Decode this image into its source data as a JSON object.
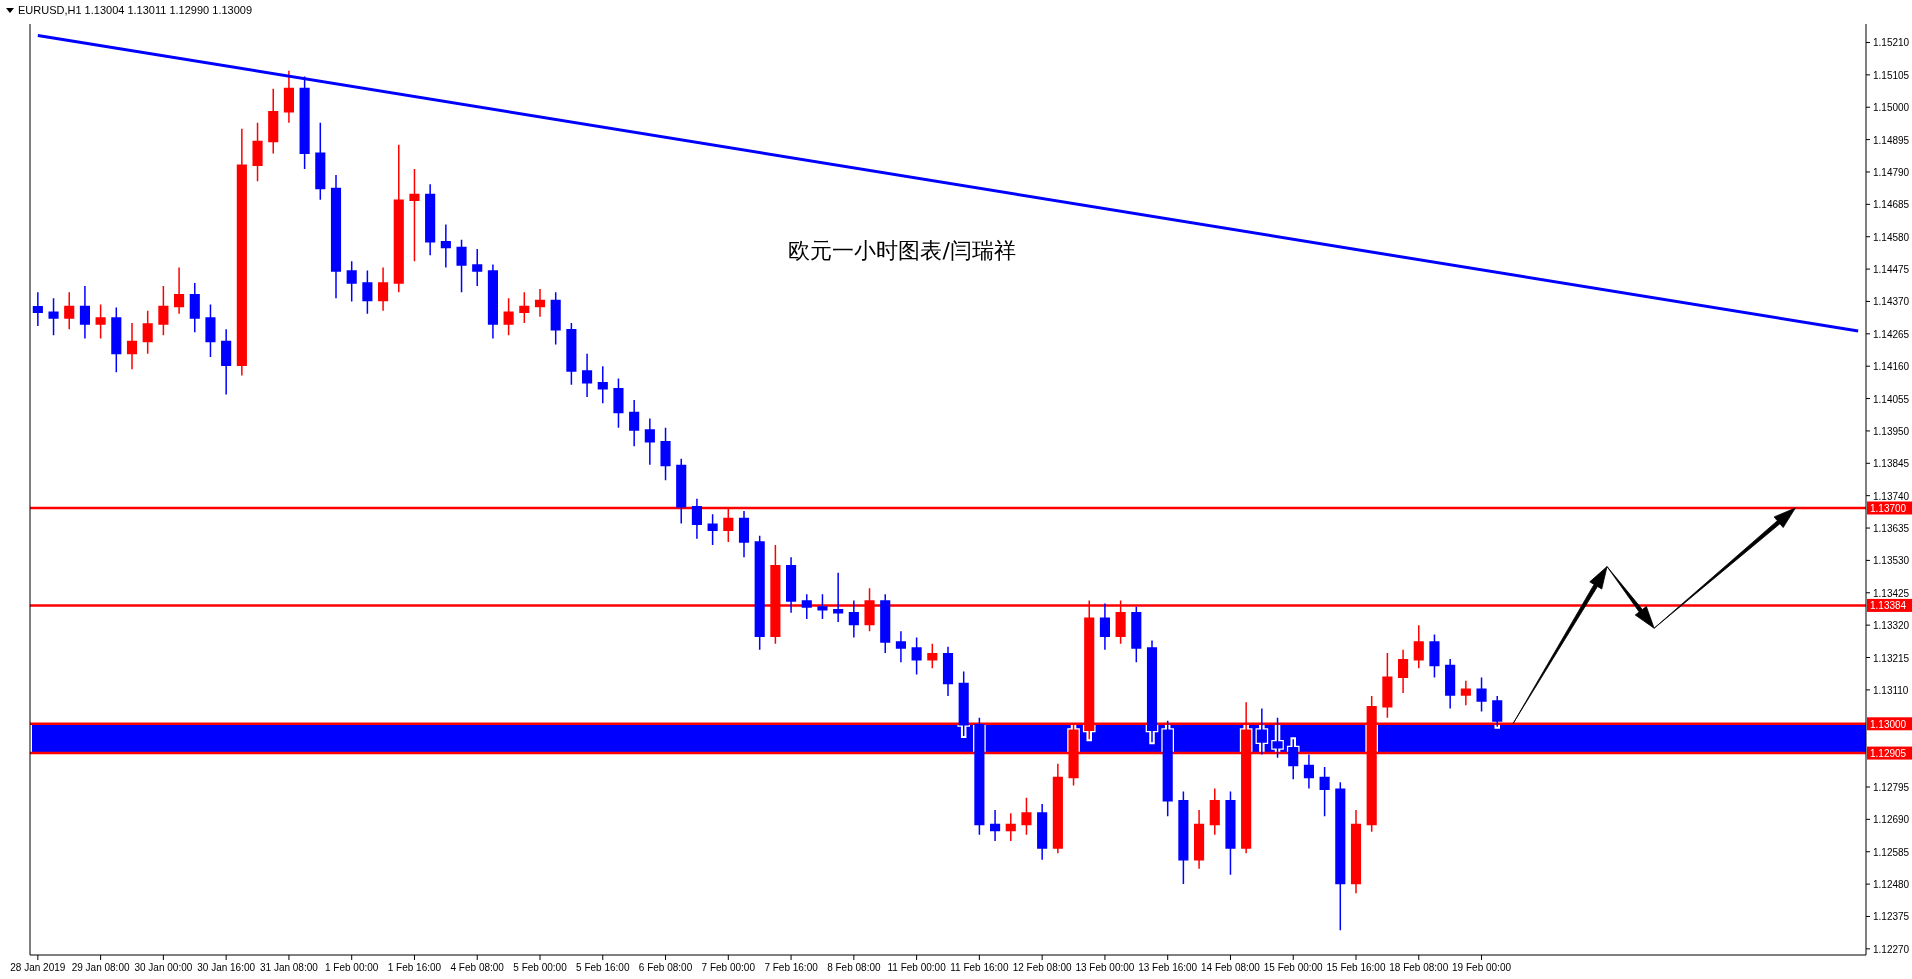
{
  "chart_data": {
    "type": "candlestick",
    "title": "欧元一小时图表/闫瑞祥",
    "annotations": [
      "EURUSD,H1  1.13004 1.13011 1.12990 1.13009"
    ],
    "categories": [
      "28 Jan 2019",
      null,
      null,
      null,
      "29 Jan 08:00",
      null,
      null,
      null,
      "30 Jan 00:00",
      null,
      null,
      null,
      "30 Jan 16:00",
      null,
      null,
      null,
      "31 Jan 08:00",
      null,
      null,
      null,
      "1 Feb 00:00",
      null,
      null,
      null,
      "1 Feb 16:00",
      null,
      null,
      null,
      "4 Feb 08:00",
      null,
      null,
      null,
      "5 Feb 00:00",
      null,
      null,
      null,
      "5 Feb 16:00",
      null,
      null,
      null,
      "6 Feb 08:00",
      null,
      null,
      null,
      "7 Feb 00:00",
      null,
      null,
      null,
      "7 Feb 16:00",
      null,
      null,
      null,
      "8 Feb 08:00",
      null,
      null,
      null,
      "11 Feb 00:00",
      null,
      null,
      null,
      "11 Feb 16:00",
      null,
      null,
      null,
      "12 Feb 08:00",
      null,
      null,
      null,
      "13 Feb 00:00",
      null,
      null,
      null,
      "13 Feb 16:00",
      null,
      null,
      null,
      "14 Feb 08:00",
      null,
      null,
      null,
      "15 Feb 00:00",
      null,
      null,
      null,
      "15 Feb 16:00",
      null,
      null,
      null,
      "18 Feb 08:00",
      null,
      null,
      null,
      "19 Feb 00:00",
      null,
      null,
      null,
      null,
      null,
      null,
      null,
      null,
      null,
      null,
      null,
      null,
      null,
      null,
      null,
      null,
      null,
      null,
      null,
      null,
      null,
      null,
      null,
      null
    ],
    "ohlc": [
      [
        1.14353,
        1.144,
        1.1429,
        1.14335
      ],
      [
        1.14335,
        1.1438,
        1.1426,
        1.14316
      ],
      [
        1.14316,
        1.144,
        1.1428,
        1.14354
      ],
      [
        1.14354,
        1.1442,
        1.1425,
        1.14297
      ],
      [
        1.14297,
        1.1436,
        1.1425,
        1.14316
      ],
      [
        1.14316,
        1.1435,
        1.1414,
        1.14201
      ],
      [
        1.14201,
        1.143,
        1.1415,
        1.1424
      ],
      [
        1.1424,
        1.1434,
        1.142,
        1.14297
      ],
      [
        1.14297,
        1.1442,
        1.1426,
        1.14354
      ],
      [
        1.14354,
        1.1448,
        1.1433,
        1.14392
      ],
      [
        1.14392,
        1.1443,
        1.1427,
        1.14316
      ],
      [
        1.14316,
        1.1436,
        1.1419,
        1.1424
      ],
      [
        1.1424,
        1.1428,
        1.14068,
        1.14163
      ],
      [
        1.14163,
        1.1493,
        1.1413,
        1.14812
      ],
      [
        1.14812,
        1.1495,
        1.1476,
        1.14889
      ],
      [
        1.14889,
        1.1506,
        1.1485,
        1.14985
      ],
      [
        1.14985,
        1.15118,
        1.1495,
        1.15061
      ],
      [
        1.15061,
        1.151,
        1.148,
        1.14851
      ],
      [
        1.14851,
        1.1495,
        1.147,
        1.14736
      ],
      [
        1.14736,
        1.1478,
        1.1438,
        1.14469
      ],
      [
        1.14469,
        1.145,
        1.1437,
        1.1443
      ],
      [
        1.1443,
        1.1447,
        1.1433,
        1.14373
      ],
      [
        1.14373,
        1.1448,
        1.1434,
        1.1443
      ],
      [
        1.1443,
        1.14878,
        1.144,
        1.14698
      ],
      [
        1.14698,
        1.148,
        1.145,
        1.14717
      ],
      [
        1.14717,
        1.1475,
        1.1452,
        1.14564
      ],
      [
        1.14564,
        1.1462,
        1.1448,
        1.14545
      ],
      [
        1.14545,
        1.1457,
        1.144,
        1.14488
      ],
      [
        1.14488,
        1.1454,
        1.1442,
        1.14469
      ],
      [
        1.14469,
        1.1449,
        1.1425,
        1.14297
      ],
      [
        1.14297,
        1.1438,
        1.1426,
        1.14335
      ],
      [
        1.14335,
        1.144,
        1.143,
        1.14354
      ],
      [
        1.14354,
        1.1441,
        1.1432,
        1.14373
      ],
      [
        1.14373,
        1.144,
        1.1423,
        1.14278
      ],
      [
        1.14278,
        1.143,
        1.141,
        1.14144
      ],
      [
        1.14144,
        1.142,
        1.1406,
        1.14106
      ],
      [
        1.14106,
        1.1416,
        1.1404,
        1.14087
      ],
      [
        1.14087,
        1.1412,
        1.1396,
        1.1401
      ],
      [
        1.1401,
        1.1405,
        1.139,
        1.13953
      ],
      [
        1.13953,
        1.1399,
        1.1384,
        1.13915
      ],
      [
        1.13915,
        1.1396,
        1.1379,
        1.13838
      ],
      [
        1.13838,
        1.1386,
        1.1365,
        1.13704
      ],
      [
        1.13704,
        1.1373,
        1.136,
        1.13647
      ],
      [
        1.13647,
        1.1368,
        1.1358,
        1.13628
      ],
      [
        1.13628,
        1.137,
        1.1359,
        1.13666
      ],
      [
        1.13666,
        1.1369,
        1.1354,
        1.1359
      ],
      [
        1.1359,
        1.1361,
        1.1324,
        1.13284
      ],
      [
        1.13284,
        1.1358,
        1.1326,
        1.13513
      ],
      [
        1.13513,
        1.1354,
        1.1336,
        1.13398
      ],
      [
        1.13398,
        1.1342,
        1.1334,
        1.13379
      ],
      [
        1.13379,
        1.1342,
        1.1334,
        1.1337
      ],
      [
        1.1337,
        1.1349,
        1.1333,
        1.1336
      ],
      [
        1.1336,
        1.134,
        1.1328,
        1.13322
      ],
      [
        1.13322,
        1.1344,
        1.133,
        1.13398
      ],
      [
        1.13398,
        1.1342,
        1.1323,
        1.13265
      ],
      [
        1.13265,
        1.133,
        1.132,
        1.13246
      ],
      [
        1.13246,
        1.1328,
        1.1316,
        1.13208
      ],
      [
        1.13208,
        1.1326,
        1.1318,
        1.13227
      ],
      [
        1.13227,
        1.1325,
        1.1309,
        1.13131
      ],
      [
        1.13131,
        1.1317,
        1.1296,
        1.12997
      ],
      [
        1.12997,
        1.1302,
        1.1264,
        1.12673
      ],
      [
        1.12673,
        1.1272,
        1.1262,
        1.12654
      ],
      [
        1.12654,
        1.1271,
        1.1262,
        1.12673
      ],
      [
        1.12673,
        1.1276,
        1.1264,
        1.12711
      ],
      [
        1.12711,
        1.1274,
        1.12559,
        1.12597
      ],
      [
        1.12597,
        1.1287,
        1.1258,
        1.12826
      ],
      [
        1.12826,
        1.13,
        1.128,
        1.12979
      ],
      [
        1.12979,
        1.134,
        1.1295,
        1.13342
      ],
      [
        1.13342,
        1.1339,
        1.1324,
        1.13284
      ],
      [
        1.13284,
        1.134,
        1.1326,
        1.1336
      ],
      [
        1.1336,
        1.1338,
        1.132,
        1.13246
      ],
      [
        1.13246,
        1.1327,
        1.1294,
        1.12979
      ],
      [
        1.12979,
        1.1301,
        1.127,
        1.1275
      ],
      [
        1.1275,
        1.1278,
        1.1248,
        1.12559
      ],
      [
        1.12559,
        1.1272,
        1.1253,
        1.12673
      ],
      [
        1.12673,
        1.1279,
        1.1264,
        1.1275
      ],
      [
        1.1275,
        1.1278,
        1.1251,
        1.12597
      ],
      [
        1.12597,
        1.1307,
        1.1258,
        1.12979
      ],
      [
        1.12979,
        1.1305,
        1.129,
        1.12941
      ],
      [
        1.12941,
        1.1302,
        1.1289,
        1.12922
      ],
      [
        1.12922,
        1.1295,
        1.1282,
        1.12865
      ],
      [
        1.12865,
        1.129,
        1.1279,
        1.12826
      ],
      [
        1.12826,
        1.1286,
        1.127,
        1.12788
      ],
      [
        1.12788,
        1.1281,
        1.1233,
        1.12482
      ],
      [
        1.12482,
        1.1272,
        1.1245,
        1.12673
      ],
      [
        1.12673,
        1.1309,
        1.1265,
        1.13055
      ],
      [
        1.13055,
        1.1323,
        1.1302,
        1.13151
      ],
      [
        1.13151,
        1.1324,
        1.131,
        1.13208
      ],
      [
        1.13208,
        1.1332,
        1.1318,
        1.13265
      ],
      [
        1.13265,
        1.1329,
        1.1315,
        1.13189
      ],
      [
        1.13189,
        1.1321,
        1.1305,
        1.13093
      ],
      [
        1.13093,
        1.1314,
        1.1306,
        1.13112
      ],
      [
        1.13112,
        1.1315,
        1.1304,
        1.13074
      ],
      [
        1.13074,
        1.1309,
        1.1299,
        1.13009
      ],
      null,
      null,
      null,
      null,
      null,
      null,
      null,
      null,
      null,
      null,
      null,
      null,
      null,
      null,
      null,
      null,
      null,
      null,
      null,
      null,
      null,
      null,
      null
    ],
    "colors": [
      "#0000ff",
      "#0000ff",
      "#ff0000",
      "#0000ff",
      "#ff0000",
      "#0000ff",
      "#ff0000",
      "#ff0000",
      "#ff0000",
      "#ff0000",
      "#0000ff",
      "#0000ff",
      "#0000ff",
      "#ff0000",
      "#ff0000",
      "#ff0000",
      "#ff0000",
      "#0000ff",
      "#0000ff",
      "#0000ff",
      "#0000ff",
      "#0000ff",
      "#ff0000",
      "#ff0000",
      "#ff0000",
      "#0000ff",
      "#0000ff",
      "#0000ff",
      "#0000ff",
      "#0000ff",
      "#ff0000",
      "#ff0000",
      "#ff0000",
      "#0000ff",
      "#0000ff",
      "#0000ff",
      "#0000ff",
      "#0000ff",
      "#0000ff",
      "#0000ff",
      "#0000ff",
      "#0000ff",
      "#0000ff",
      "#0000ff",
      "#ff0000",
      "#0000ff",
      "#0000ff",
      "#ff0000",
      "#0000ff",
      "#0000ff",
      "#0000ff",
      "#0000ff",
      "#0000ff",
      "#ff0000",
      "#0000ff",
      "#0000ff",
      "#0000ff",
      "#ff0000",
      "#0000ff",
      "#0000ff",
      "#0000ff",
      "#0000ff",
      "#ff0000",
      "#ff0000",
      "#0000ff",
      "#ff0000",
      "#ff0000",
      "#ff0000",
      "#0000ff",
      "#ff0000",
      "#0000ff",
      "#0000ff",
      "#0000ff",
      "#0000ff",
      "#ff0000",
      "#ff0000",
      "#0000ff",
      "#ff0000",
      "#0000ff",
      "#0000ff",
      "#0000ff",
      "#0000ff",
      "#0000ff",
      "#0000ff",
      "#ff0000",
      "#ff0000",
      "#ff0000",
      "#ff0000",
      "#ff0000",
      "#0000ff",
      "#0000ff",
      "#ff0000",
      "#0000ff",
      "#0000ff",
      null,
      null,
      null,
      null,
      null,
      null,
      null,
      null,
      null,
      null,
      null,
      null,
      null,
      null,
      null,
      null,
      null,
      null,
      null,
      null,
      null,
      null,
      null
    ],
    "series": [
      {
        "type": "line",
        "color": "#0000ff",
        "values": [
          1.15233,
          null,
          null,
          null,
          null,
          null,
          null,
          null,
          null,
          null,
          null,
          null,
          null,
          null,
          null,
          null,
          null,
          null,
          null,
          null,
          null,
          null,
          null,
          null,
          null,
          null,
          null,
          null,
          null,
          null,
          null,
          null,
          null,
          null,
          null,
          null,
          null,
          null,
          null,
          null,
          null,
          null,
          null,
          null,
          null,
          null,
          null,
          null,
          null,
          null,
          null,
          null,
          null,
          null,
          null,
          null,
          null,
          null,
          null,
          null,
          null,
          null,
          null,
          null,
          null,
          null,
          null,
          null,
          null,
          null,
          null,
          null,
          null,
          null,
          null,
          null,
          null,
          null,
          null,
          null,
          null,
          null,
          null,
          null,
          null,
          null,
          null,
          null,
          null,
          null,
          null,
          null,
          null,
          null,
          null,
          null,
          null,
          null,
          null,
          null,
          null,
          null,
          null,
          null,
          null,
          null,
          null,
          null,
          null,
          null,
          null,
          null,
          null,
          null,
          null,
          null,
          1.14274
        ]
      }
    ],
    "ylim": [
      1.1225,
      1.1527
    ],
    "yticks": [
      {
        "value": 1.1227,
        "label": "1.12270"
      },
      {
        "value": 1.12375,
        "label": "1.12375"
      },
      {
        "value": 1.1248,
        "label": "1.12480"
      },
      {
        "value": 1.12585,
        "label": "1.12585"
      },
      {
        "value": 1.1269,
        "label": "1.12690"
      },
      {
        "value": 1.12795,
        "label": "1.12795"
      },
      {
        "value": 1.1311,
        "label": "1.13110"
      },
      {
        "value": 1.13215,
        "label": "1.13215"
      },
      {
        "value": 1.1332,
        "label": "1.13320"
      },
      {
        "value": 1.13425,
        "label": "1.13425"
      },
      {
        "value": 1.1353,
        "label": "1.13530"
      },
      {
        "value": 1.13635,
        "label": "1.13635"
      },
      {
        "value": 1.1374,
        "label": "1.13740"
      },
      {
        "value": 1.13845,
        "label": "1.13845"
      },
      {
        "value": 1.1395,
        "label": "1.13950"
      },
      {
        "value": 1.14055,
        "label": "1.14055"
      },
      {
        "value": 1.1416,
        "label": "1.14160"
      },
      {
        "value": 1.14265,
        "label": "1.14265"
      },
      {
        "value": 1.1437,
        "label": "1.14370"
      },
      {
        "value": 1.14475,
        "label": "1.14475"
      },
      {
        "value": 1.1458,
        "label": "1.14580"
      },
      {
        "value": 1.14685,
        "label": "1.14685"
      },
      {
        "value": 1.1479,
        "label": "1.14790"
      },
      {
        "value": 1.14895,
        "label": "1.14895"
      },
      {
        "value": 1.15,
        "label": "1.15000"
      },
      {
        "value": 1.15105,
        "label": "1.15105"
      },
      {
        "value": 1.1521,
        "label": "1.15210"
      }
    ],
    "ref_lines": [
      {
        "axis": "y",
        "value": 1.137,
        "label": "1.13700",
        "color": "#ff0000"
      },
      {
        "axis": "y",
        "value": 1.13384,
        "label": "1.13384",
        "color": "#ff0000"
      },
      {
        "axis": "y",
        "value": 1.13,
        "label": "1.13000",
        "color": "#ff0000"
      },
      {
        "axis": "y",
        "value": 1.12905,
        "label": "1.12905",
        "color": "#ff0000"
      }
    ],
    "bands": [
      {
        "axis": "y",
        "from": 1.12905,
        "to": 1.13,
        "color": "#0000ff"
      }
    ]
  }
}
